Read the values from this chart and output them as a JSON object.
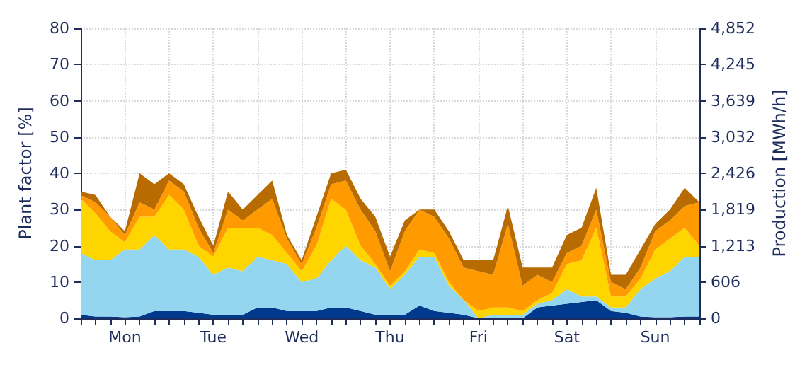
{
  "chart_data": {
    "type": "area",
    "stacked": true,
    "ylabel": "Plant factor [%]",
    "y2label": "Production [MWh/h]",
    "categories": [
      null,
      null,
      null,
      "Mon",
      null,
      null,
      null,
      null,
      null,
      "Tue",
      null,
      null,
      null,
      null,
      null,
      "Wed",
      null,
      null,
      null,
      null,
      null,
      "Thu",
      null,
      null,
      null,
      null,
      null,
      "Fri",
      null,
      null,
      null,
      null,
      null,
      "Sat",
      null,
      null,
      null,
      null,
      null,
      "Sun",
      null,
      null,
      null
    ],
    "series": [
      {
        "color": "#003a8c",
        "values": [
          1,
          0.5,
          0.5,
          0.3,
          0.5,
          2,
          2,
          2,
          1.5,
          1,
          1,
          1,
          3,
          3,
          2,
          2,
          2,
          3,
          3,
          2,
          1,
          1,
          1,
          3.5,
          2,
          1.5,
          1,
          0,
          0,
          0,
          0,
          3,
          3.5,
          4,
          4.5,
          5,
          2,
          1.5,
          0.5,
          0.3,
          0.3,
          0.5,
          0.5
        ]
      },
      {
        "color": "#94d6ef",
        "values": [
          17,
          15.5,
          15.5,
          18.7,
          18.5,
          21,
          17,
          17,
          15.5,
          11,
          13,
          12,
          14,
          13,
          13,
          8,
          9,
          13,
          17,
          14,
          13,
          7,
          11,
          13.5,
          15,
          7.5,
          4,
          0,
          1,
          1,
          1,
          1,
          1.5,
          4,
          1.5,
          1,
          1,
          1.5,
          7.5,
          10.7,
          12.7,
          16.5,
          16.5
        ]
      },
      {
        "color": "#ffd500",
        "values": [
          15,
          13,
          8,
          2,
          9,
          5,
          15,
          11,
          3,
          5,
          11,
          12,
          8,
          7,
          3,
          3,
          9,
          17,
          10,
          4,
          1,
          1,
          1,
          2,
          1,
          1,
          0,
          2,
          2,
          2,
          1,
          1,
          2,
          7,
          10,
          19,
          3,
          3,
          3,
          8,
          9,
          8,
          3
        ]
      },
      {
        "color": "#ff9a00",
        "values": [
          1,
          3,
          4,
          2,
          4,
          2,
          4,
          5,
          5,
          1,
          5,
          2,
          5,
          10,
          4,
          2,
          5,
          4,
          8,
          10,
          9,
          4,
          11,
          11,
          10,
          12,
          9,
          11,
          9,
          23,
          7,
          7,
          3,
          3,
          4,
          5,
          4,
          2,
          3,
          5,
          5,
          6,
          12
        ]
      },
      {
        "color": "#b86b00",
        "values": [
          1,
          2,
          0,
          1,
          8,
          7,
          2,
          2,
          3,
          2,
          5,
          3,
          4,
          5,
          1,
          1,
          3,
          3,
          3,
          3,
          4,
          4,
          3,
          0,
          2,
          2,
          2,
          3,
          4,
          5,
          5,
          2,
          4,
          5,
          5,
          6,
          2,
          4,
          5,
          2,
          3,
          5,
          0
        ]
      }
    ],
    "ylim": [
      0,
      80
    ],
    "yticks": [
      0,
      10,
      20,
      30,
      40,
      50,
      60,
      70,
      80
    ],
    "y2lim": [
      0,
      4852
    ],
    "y2ticks": [
      0,
      606,
      {
        "value": 1213,
        "label": "1,213"
      },
      {
        "value": 1819,
        "label": "1,819"
      },
      {
        "value": 2426,
        "label": "2,426"
      },
      {
        "value": 3032,
        "label": "3,032"
      },
      {
        "value": 3639,
        "label": "3,639"
      },
      {
        "value": 4245,
        "label": "4,245"
      },
      {
        "value": 4852,
        "label": "4,852"
      }
    ],
    "grid": true,
    "marker": "none"
  }
}
